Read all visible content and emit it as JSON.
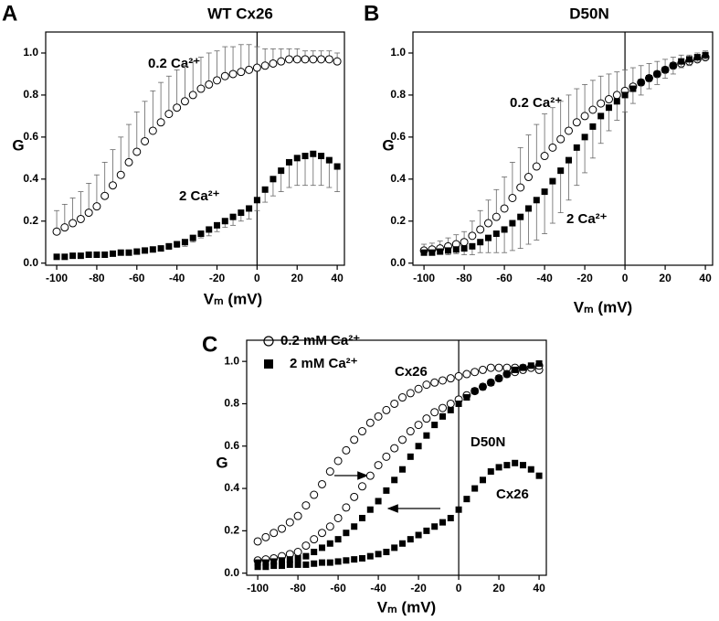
{
  "chart_data": [
    {
      "type": "scatter",
      "panel": "A",
      "title": "WT Cx26",
      "x_label": "Vₘ (mV)",
      "y_label": "G",
      "annotations": [
        "0.2 Ca²⁺",
        "2 Ca²⁺"
      ],
      "xlim": [
        -105.5,
        43.6
      ],
      "ylim": [
        -0.01,
        1.1
      ],
      "xticks": [
        -100,
        -80,
        -60,
        -40,
        -20,
        0,
        20,
        40
      ],
      "yticks": [
        {
          "value": 0,
          "label": "0.0"
        },
        {
          "value": 0.2,
          "label": "0.2"
        },
        {
          "value": 0.4,
          "label": "0.4"
        },
        {
          "value": 0.6,
          "label": "0.6"
        },
        {
          "value": 0.8,
          "label": "0.8"
        },
        {
          "value": 1,
          "label": "1.0"
        }
      ],
      "x_refline": 0,
      "x": [
        -100,
        -96,
        -92,
        -88,
        -84,
        -80,
        -76,
        -72,
        -68,
        -64,
        -60,
        -56,
        -52,
        -48,
        -44,
        -40,
        -36,
        -32,
        -28,
        -24,
        -20,
        -16,
        -12,
        -8,
        -4,
        0,
        4,
        8,
        12,
        16,
        20,
        24,
        28,
        32,
        36,
        40
      ],
      "series": [
        {
          "color": "#000000",
          "marker": "circle-open",
          "errorbar_side": "up",
          "values": [
            0.15,
            0.17,
            0.19,
            0.21,
            0.24,
            0.27,
            0.32,
            0.37,
            0.42,
            0.48,
            0.53,
            0.58,
            0.63,
            0.67,
            0.71,
            0.74,
            0.77,
            0.8,
            0.83,
            0.85,
            0.87,
            0.89,
            0.9,
            0.91,
            0.92,
            0.93,
            0.94,
            0.95,
            0.96,
            0.97,
            0.97,
            0.97,
            0.97,
            0.97,
            0.97,
            0.96
          ],
          "errors": [
            0.1,
            0.11,
            0.12,
            0.13,
            0.14,
            0.15,
            0.16,
            0.17,
            0.18,
            0.18,
            0.19,
            0.19,
            0.19,
            0.19,
            0.18,
            0.18,
            0.17,
            0.16,
            0.15,
            0.15,
            0.14,
            0.14,
            0.13,
            0.13,
            0.12,
            0.1,
            0.08,
            0.07,
            0.06,
            0.05,
            0.05,
            0.04,
            0.04,
            0.04,
            0.04,
            0.04
          ]
        },
        {
          "color": "#000000",
          "marker": "square",
          "errorbar_side": "down",
          "values": [
            0.03,
            0.03,
            0.035,
            0.035,
            0.04,
            0.04,
            0.04,
            0.045,
            0.05,
            0.05,
            0.055,
            0.06,
            0.065,
            0.07,
            0.08,
            0.09,
            0.1,
            0.12,
            0.14,
            0.16,
            0.18,
            0.2,
            0.22,
            0.24,
            0.26,
            0.3,
            0.35,
            0.4,
            0.44,
            0.48,
            0.5,
            0.51,
            0.52,
            0.51,
            0.49,
            0.46
          ],
          "errors": [
            0.01,
            0.01,
            0.01,
            0.01,
            0.01,
            0.01,
            0.01,
            0.01,
            0.01,
            0.01,
            0.01,
            0.01,
            0.01,
            0.01,
            0.015,
            0.015,
            0.02,
            0.02,
            0.02,
            0.03,
            0.03,
            0.03,
            0.04,
            0.04,
            0.05,
            0.05,
            0.06,
            0.08,
            0.1,
            0.12,
            0.13,
            0.14,
            0.15,
            0.14,
            0.13,
            0.12
          ]
        }
      ]
    },
    {
      "type": "scatter",
      "panel": "B",
      "title": "D50N",
      "x_label": "Vₘ (mV)",
      "y_label": "G",
      "annotations": [
        "0.2 Ca²⁺",
        "2 Ca²⁺"
      ],
      "xlim": [
        -105.5,
        43.6
      ],
      "ylim": [
        -0.01,
        1.1
      ],
      "xticks": [
        -100,
        -80,
        -60,
        -40,
        -20,
        0,
        20,
        40
      ],
      "yticks": [
        {
          "value": 0,
          "label": "0.0"
        },
        {
          "value": 0.2,
          "label": "0.2"
        },
        {
          "value": 0.4,
          "label": "0.4"
        },
        {
          "value": 0.6,
          "label": "0.6"
        },
        {
          "value": 0.8,
          "label": "0.8"
        },
        {
          "value": 1,
          "label": "1.0"
        }
      ],
      "x_refline": 0,
      "x": [
        -100,
        -96,
        -92,
        -88,
        -84,
        -80,
        -76,
        -72,
        -68,
        -64,
        -60,
        -56,
        -52,
        -48,
        -44,
        -40,
        -36,
        -32,
        -28,
        -24,
        -20,
        -16,
        -12,
        -8,
        -4,
        0,
        4,
        8,
        12,
        16,
        20,
        24,
        28,
        32,
        36,
        40
      ],
      "series": [
        {
          "color": "#000000",
          "marker": "circle-open",
          "errorbar_side": "up",
          "values": [
            0.06,
            0.065,
            0.07,
            0.08,
            0.09,
            0.1,
            0.13,
            0.16,
            0.19,
            0.22,
            0.26,
            0.31,
            0.36,
            0.41,
            0.46,
            0.51,
            0.55,
            0.59,
            0.63,
            0.67,
            0.7,
            0.73,
            0.76,
            0.78,
            0.8,
            0.82,
            0.84,
            0.86,
            0.88,
            0.9,
            0.92,
            0.94,
            0.95,
            0.96,
            0.97,
            0.98
          ],
          "errors": [
            0.03,
            0.03,
            0.035,
            0.04,
            0.045,
            0.05,
            0.07,
            0.09,
            0.11,
            0.13,
            0.15,
            0.17,
            0.19,
            0.2,
            0.2,
            0.2,
            0.19,
            0.18,
            0.17,
            0.16,
            0.15,
            0.14,
            0.13,
            0.12,
            0.11,
            0.1,
            0.09,
            0.08,
            0.07,
            0.06,
            0.05,
            0.04,
            0.04,
            0.03,
            0.03,
            0.03
          ]
        },
        {
          "color": "#000000",
          "marker": "square",
          "errorbar_side": "down",
          "values": [
            0.05,
            0.05,
            0.055,
            0.06,
            0.065,
            0.07,
            0.08,
            0.1,
            0.12,
            0.14,
            0.16,
            0.19,
            0.22,
            0.26,
            0.3,
            0.34,
            0.39,
            0.44,
            0.49,
            0.55,
            0.6,
            0.65,
            0.7,
            0.74,
            0.77,
            0.8,
            0.83,
            0.86,
            0.88,
            0.9,
            0.92,
            0.94,
            0.96,
            0.97,
            0.98,
            0.99
          ],
          "errors": [
            0.01,
            0.01,
            0.01,
            0.02,
            0.02,
            0.03,
            0.04,
            0.05,
            0.07,
            0.09,
            0.11,
            0.13,
            0.15,
            0.17,
            0.19,
            0.2,
            0.2,
            0.2,
            0.19,
            0.18,
            0.17,
            0.15,
            0.13,
            0.11,
            0.09,
            0.08,
            0.07,
            0.06,
            0.05,
            0.05,
            0.04,
            0.04,
            0.03,
            0.03,
            0.02,
            0.02
          ]
        }
      ]
    },
    {
      "type": "scatter",
      "panel": "C",
      "x_label": "Vₘ (mV)",
      "y_label": "G",
      "legend": [
        "0.2 mM Ca²⁺",
        "2 mM Ca²⁺"
      ],
      "annotations": [
        "Cx26",
        "D50N",
        "Cx26"
      ],
      "xlim": [
        -105.5,
        43.6
      ],
      "ylim": [
        -0.01,
        1.1
      ],
      "xticks": [
        -100,
        -80,
        -60,
        -40,
        -20,
        0,
        20,
        40
      ],
      "yticks": [
        {
          "value": 0,
          "label": "0.0"
        },
        {
          "value": 0.2,
          "label": "0.2"
        },
        {
          "value": 0.4,
          "label": "0.4"
        },
        {
          "value": 0.6,
          "label": "0.6"
        },
        {
          "value": 0.8,
          "label": "0.8"
        },
        {
          "value": 1,
          "label": "1.0"
        }
      ],
      "x_refline": 0,
      "x": [
        -100,
        -96,
        -92,
        -88,
        -84,
        -80,
        -76,
        -72,
        -68,
        -64,
        -60,
        -56,
        -52,
        -48,
        -44,
        -40,
        -36,
        -32,
        -28,
        -24,
        -20,
        -16,
        -12,
        -8,
        -4,
        0,
        4,
        8,
        12,
        16,
        20,
        24,
        28,
        32,
        36,
        40
      ],
      "series": [
        {
          "color": "#000000",
          "marker": "circle-open",
          "values": [
            0.15,
            0.17,
            0.19,
            0.21,
            0.24,
            0.27,
            0.32,
            0.37,
            0.42,
            0.48,
            0.53,
            0.58,
            0.63,
            0.67,
            0.71,
            0.74,
            0.77,
            0.8,
            0.83,
            0.85,
            0.87,
            0.89,
            0.9,
            0.91,
            0.92,
            0.93,
            0.94,
            0.95,
            0.96,
            0.97,
            0.97,
            0.97,
            0.97,
            0.97,
            0.97,
            0.96
          ]
        },
        {
          "color": "#000000",
          "marker": "square",
          "values": [
            0.03,
            0.03,
            0.035,
            0.035,
            0.04,
            0.04,
            0.04,
            0.045,
            0.05,
            0.05,
            0.055,
            0.06,
            0.065,
            0.07,
            0.08,
            0.09,
            0.1,
            0.12,
            0.14,
            0.16,
            0.18,
            0.2,
            0.22,
            0.24,
            0.26,
            0.3,
            0.35,
            0.4,
            0.44,
            0.48,
            0.5,
            0.51,
            0.52,
            0.51,
            0.49,
            0.46
          ]
        },
        {
          "color": "#000000",
          "marker": "circle-open",
          "values": [
            0.06,
            0.065,
            0.07,
            0.08,
            0.09,
            0.1,
            0.13,
            0.16,
            0.19,
            0.22,
            0.26,
            0.31,
            0.36,
            0.41,
            0.46,
            0.51,
            0.55,
            0.59,
            0.63,
            0.67,
            0.7,
            0.73,
            0.76,
            0.78,
            0.8,
            0.82,
            0.84,
            0.86,
            0.88,
            0.9,
            0.92,
            0.94,
            0.95,
            0.96,
            0.97,
            0.98
          ]
        },
        {
          "color": "#000000",
          "marker": "square",
          "values": [
            0.05,
            0.05,
            0.055,
            0.06,
            0.065,
            0.07,
            0.08,
            0.1,
            0.12,
            0.14,
            0.16,
            0.19,
            0.22,
            0.26,
            0.3,
            0.34,
            0.39,
            0.44,
            0.49,
            0.55,
            0.6,
            0.65,
            0.7,
            0.74,
            0.77,
            0.8,
            0.83,
            0.86,
            0.88,
            0.9,
            0.92,
            0.94,
            0.96,
            0.97,
            0.98,
            0.99
          ]
        }
      ]
    }
  ]
}
